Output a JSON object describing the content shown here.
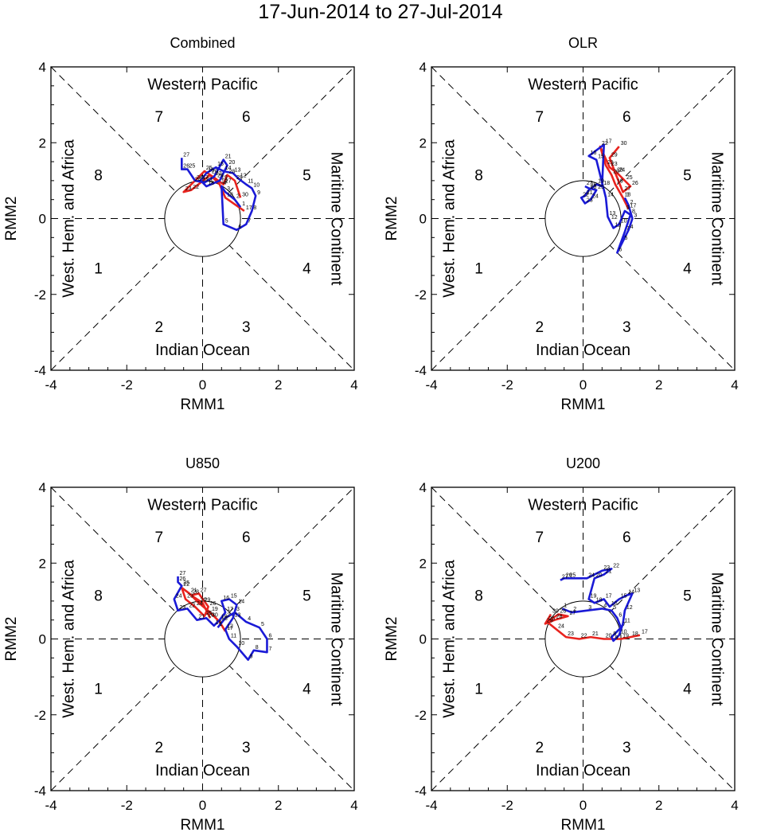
{
  "title": "17-Jun-2014 to 27-Jul-2014",
  "axis": {
    "xlabel": "RMM1",
    "ylabel": "RMM2",
    "range": [
      -4,
      4
    ],
    "ticks": [
      "-4",
      "-2",
      "0",
      "2",
      "4"
    ]
  },
  "regions": {
    "top": "Western Pacific",
    "bottom": "Indian Ocean",
    "left": "West. Hem. and Africa",
    "right": "Maritime Continent"
  },
  "phases": {
    "p1": "1",
    "p2": "2",
    "p3": "3",
    "p4": "4",
    "p5": "5",
    "p6": "6",
    "p7": "7",
    "p8": "8"
  },
  "colors": {
    "june": "#e8231e",
    "july": "#1a1ad6",
    "axes": "#000000"
  },
  "chart_data": [
    {
      "type": "line",
      "title": "Combined",
      "series": [
        {
          "name": "June",
          "color": "#e8231e",
          "labels": [
            "17",
            "18",
            "19",
            "20",
            "21",
            "22",
            "23",
            "24",
            "25",
            "26",
            "27",
            "28",
            "29",
            "30"
          ],
          "x": [
            1.1,
            0.6,
            0.45,
            0.2,
            -0.05,
            -0.3,
            -0.5,
            -0.25,
            0.05,
            0.35,
            0.55,
            0.65,
            0.85,
            1.0
          ],
          "y": [
            0.2,
            0.55,
            0.9,
            1.15,
            0.95,
            0.75,
            0.7,
            0.95,
            1.25,
            1.05,
            0.9,
            1.15,
            1.0,
            0.55
          ]
        },
        {
          "name": "July",
          "color": "#1a1ad6",
          "labels": [
            "1",
            "2",
            "3",
            "4",
            "5",
            "6",
            "7",
            "8",
            "9",
            "10",
            "11",
            "12",
            "13",
            "14",
            "15",
            "16",
            "17",
            "18",
            "19",
            "20",
            "21",
            "22",
            "23",
            "24",
            "25",
            "26",
            "27"
          ],
          "x": [
            1.0,
            0.85,
            0.6,
            0.5,
            0.55,
            0.9,
            1.15,
            1.3,
            1.4,
            1.3,
            1.15,
            0.95,
            0.8,
            0.55,
            0.35,
            0.1,
            -0.05,
            0.1,
            0.45,
            0.65,
            0.55,
            0.3,
            0.05,
            -0.2,
            -0.4,
            -0.55,
            -0.55
          ],
          "y": [
            0.3,
            0.5,
            0.7,
            0.85,
            -0.15,
            -0.3,
            -0.15,
            0.2,
            0.6,
            0.8,
            0.9,
            1.05,
            1.2,
            1.25,
            1.35,
            1.2,
            1.0,
            0.85,
            1.0,
            1.4,
            1.55,
            1.1,
            0.95,
            1.0,
            1.3,
            1.3,
            1.6
          ]
        }
      ]
    },
    {
      "type": "line",
      "title": "OLR",
      "series": [
        {
          "name": "June",
          "color": "#e8231e",
          "labels": [
            "17",
            "18",
            "19",
            "20",
            "21",
            "22",
            "23",
            "24",
            "25",
            "26",
            "27",
            "28",
            "29",
            "30"
          ],
          "x": [
            1.2,
            1.05,
            0.85,
            0.75,
            0.6,
            0.45,
            0.7,
            0.9,
            1.1,
            1.25,
            1.05,
            0.85,
            0.7,
            0.95
          ],
          "y": [
            0.25,
            0.55,
            0.9,
            1.15,
            1.4,
            1.9,
            1.35,
            1.2,
            1.0,
            0.85,
            0.7,
            1.2,
            1.6,
            1.9
          ]
        },
        {
          "name": "July",
          "color": "#1a1ad6",
          "labels": [
            "1",
            "2",
            "3",
            "4",
            "5",
            "6",
            "7",
            "8",
            "9",
            "10",
            "11",
            "12",
            "13",
            "14",
            "15",
            "16",
            "17",
            "18",
            "19",
            "20",
            "21",
            "22",
            "23",
            "24",
            "25",
            "26",
            "27"
          ],
          "x": [
            1.1,
            1.2,
            1.3,
            1.2,
            1.05,
            0.9,
            1.1,
            1.25,
            1.1,
            0.95,
            0.8,
            0.7,
            0.65,
            0.6,
            0.35,
            0.15,
            0.55,
            0.5,
            0.35,
            0.15,
            0.05,
            -0.05,
            0.05,
            0.2,
            0.35,
            0.15,
            0.05
          ],
          "y": [
            0.55,
            0.35,
            0.0,
            -0.3,
            -0.6,
            -0.9,
            -0.35,
            0.1,
            0.2,
            -0.15,
            -0.25,
            -0.05,
            0.05,
            0.55,
            1.55,
            1.65,
            1.95,
            0.85,
            0.9,
            0.75,
            0.6,
            0.55,
            0.4,
            0.5,
            0.75,
            0.8,
            0.85
          ]
        }
      ]
    },
    {
      "type": "line",
      "title": "U850",
      "series": [
        {
          "name": "June",
          "color": "#e8231e",
          "labels": [
            "17",
            "18",
            "19",
            "20",
            "21",
            "22",
            "23",
            "24",
            "25",
            "26",
            "27",
            "28",
            "29",
            "30"
          ],
          "x": [
            0.6,
            0.45,
            0.2,
            -0.1,
            -0.35,
            -0.55,
            -0.45,
            -0.2,
            0.05,
            0.15,
            -0.1,
            -0.3,
            0.0,
            0.2
          ],
          "y": [
            0.2,
            0.45,
            0.7,
            0.95,
            1.2,
            1.35,
            1.05,
            0.85,
            0.6,
            0.85,
            1.2,
            1.15,
            0.95,
            0.55
          ]
        },
        {
          "name": "July",
          "color": "#1a1ad6",
          "labels": [
            "1",
            "2",
            "3",
            "4",
            "5",
            "6",
            "7",
            "8",
            "9",
            "10",
            "11",
            "12",
            "13",
            "14",
            "15",
            "16",
            "17",
            "18",
            "19",
            "20",
            "21",
            "22",
            "23",
            "24",
            "25",
            "26",
            "27"
          ],
          "x": [
            0.4,
            0.6,
            0.85,
            1.15,
            1.5,
            1.7,
            1.7,
            1.35,
            1.2,
            0.9,
            0.7,
            0.6,
            0.8,
            0.9,
            0.7,
            0.5,
            0.6,
            0.45,
            0.3,
            0.1,
            -0.15,
            -0.4,
            -0.65,
            -0.75,
            -0.55,
            -0.65,
            -0.65
          ],
          "y": [
            0.3,
            0.55,
            0.7,
            0.45,
            0.3,
            0.0,
            -0.35,
            -0.3,
            -0.55,
            -0.2,
            0.0,
            0.25,
            0.55,
            0.9,
            1.05,
            1.0,
            0.7,
            0.5,
            0.35,
            0.55,
            0.5,
            0.8,
            0.75,
            1.05,
            1.4,
            1.5,
            1.65
          ]
        }
      ]
    },
    {
      "type": "line",
      "title": "U200",
      "series": [
        {
          "name": "June",
          "color": "#e8231e",
          "labels": [
            "17",
            "18",
            "19",
            "20",
            "21",
            "22",
            "23",
            "24",
            "25",
            "26",
            "27",
            "28",
            "29",
            "30"
          ],
          "x": [
            1.5,
            1.25,
            1.0,
            0.55,
            0.2,
            -0.1,
            -0.45,
            -0.7,
            -0.95,
            -0.65,
            -0.4,
            -0.75,
            -1.0,
            -0.85
          ],
          "y": [
            0.1,
            0.05,
            0.0,
            0.0,
            0.05,
            0.0,
            0.05,
            0.25,
            0.45,
            0.65,
            0.6,
            0.5,
            0.4,
            0.65
          ]
        },
        {
          "name": "July",
          "color": "#1a1ad6",
          "labels": [
            "1",
            "2",
            "3",
            "4",
            "5",
            "6",
            "7",
            "8",
            "9",
            "10",
            "11",
            "12",
            "13",
            "14",
            "15",
            "16",
            "17",
            "18",
            "19",
            "20",
            "21",
            "22",
            "23",
            "24",
            "25",
            "26",
            "27"
          ],
          "x": [
            -0.55,
            -0.3,
            0.1,
            0.5,
            0.75,
            0.9,
            1.0,
            0.75,
            0.8,
            0.95,
            1.05,
            1.1,
            1.3,
            1.15,
            0.95,
            0.7,
            0.55,
            0.3,
            0.15,
            0.3,
            0.55,
            0.75,
            0.5,
            0.1,
            -0.4,
            -0.5,
            -0.6
          ],
          "y": [
            0.8,
            0.7,
            0.75,
            0.8,
            0.75,
            0.55,
            0.3,
            0.05,
            -0.05,
            0.1,
            0.4,
            0.75,
            1.2,
            1.15,
            1.05,
            0.85,
            1.05,
            0.95,
            1.05,
            1.6,
            1.7,
            1.85,
            1.8,
            1.6,
            1.6,
            1.6,
            1.55
          ]
        }
      ]
    }
  ]
}
